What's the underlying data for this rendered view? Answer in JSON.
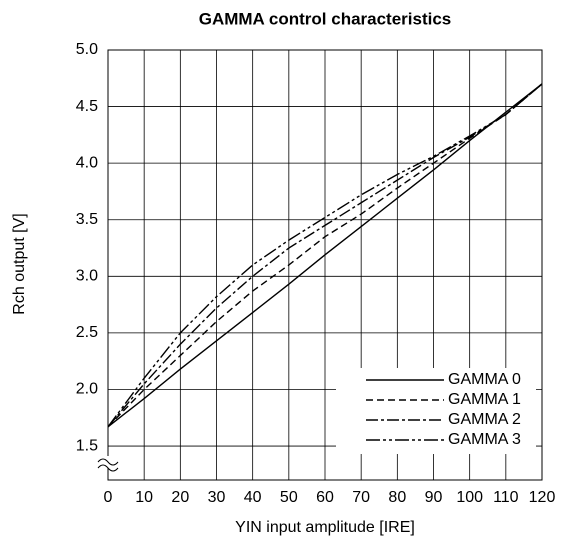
{
  "chart_data": {
    "type": "line",
    "title": "GAMMA control characteristics",
    "xlabel": "YIN input amplitude [IRE]",
    "ylabel": "Rch output [V]",
    "x": [
      0,
      10,
      20,
      30,
      40,
      50,
      60,
      70,
      80,
      90,
      100,
      110,
      120
    ],
    "series": [
      {
        "name": "GAMMA 0",
        "color": "#000000",
        "values": [
          1.67,
          1.92,
          2.18,
          2.43,
          2.68,
          2.93,
          3.19,
          3.44,
          3.69,
          3.94,
          4.2,
          4.45,
          4.7
        ]
      },
      {
        "name": "GAMMA 1",
        "color": "#000000",
        "values": [
          1.67,
          2.0,
          2.3,
          2.6,
          2.87,
          3.1,
          3.35,
          3.55,
          3.78,
          4.0,
          4.22,
          4.43,
          4.7
        ]
      },
      {
        "name": "GAMMA 2",
        "color": "#000000",
        "values": [
          1.67,
          2.05,
          2.4,
          2.72,
          3.0,
          3.25,
          3.45,
          3.65,
          3.85,
          4.05,
          4.23,
          4.43,
          4.7
        ]
      },
      {
        "name": "GAMMA 3",
        "color": "#000000",
        "values": [
          1.67,
          2.1,
          2.5,
          2.82,
          3.1,
          3.32,
          3.52,
          3.72,
          3.9,
          4.06,
          4.24,
          4.43,
          4.7
        ]
      }
    ],
    "xlim": [
      0,
      120
    ],
    "xticks": [
      0,
      10,
      20,
      30,
      40,
      50,
      60,
      70,
      80,
      90,
      100,
      110,
      120
    ],
    "ylim": [
      1.2,
      5.0
    ],
    "yticks": [
      {
        "value": 1.5,
        "label": "1.5"
      },
      {
        "value": 2.0,
        "label": "2.0"
      },
      {
        "value": 2.5,
        "label": "2.5"
      },
      {
        "value": 3.0,
        "label": "3.0"
      },
      {
        "value": 3.5,
        "label": "3.5"
      },
      {
        "value": 4.0,
        "label": "4.0"
      },
      {
        "value": 4.5,
        "label": "4.5"
      },
      {
        "value": 5.0,
        "label": "5.0"
      }
    ],
    "grid": true,
    "legend": "lower right"
  }
}
